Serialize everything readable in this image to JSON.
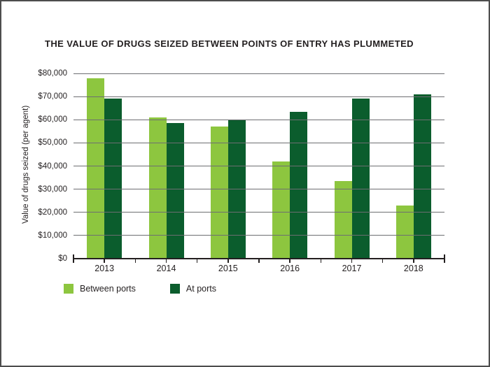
{
  "title": "THE VALUE OF DRUGS SEIZED BETWEEN POINTS OF ENTRY HAS PLUMMETED",
  "chart_data": {
    "type": "bar",
    "title": "THE VALUE OF DRUGS SEIZED BETWEEN POINTS OF ENTRY HAS PLUMMETED",
    "categories": [
      "2013",
      "2014",
      "2015",
      "2016",
      "2017",
      "2018"
    ],
    "series": [
      {
        "name": "Between ports",
        "color": "#8dc63f",
        "values": [
          78000,
          61000,
          57000,
          42000,
          33500,
          23000
        ]
      },
      {
        "name": "At ports",
        "color": "#0b5d2d",
        "values": [
          69000,
          58500,
          60000,
          63500,
          69000,
          71000
        ]
      }
    ],
    "xlabel": "",
    "ylabel": "Value of drugs seized (per agent)",
    "ylim": [
      0,
      80000
    ],
    "ytick_step": 10000,
    "ytick_labels": [
      "$0",
      "$10,000",
      "$20,000",
      "$30,000",
      "$40,000",
      "$50,000",
      "$60,000",
      "$70,000",
      "$80,000"
    ],
    "grid": true,
    "gridlines_over_bars": true,
    "gridline_color": "#6d6e71",
    "axis_color": "#231f20",
    "legend_position": "bottom-left"
  },
  "legend": {
    "items": [
      {
        "label": "Between ports",
        "color": "#8dc63f"
      },
      {
        "label": "At ports",
        "color": "#0b5d2d"
      }
    ]
  },
  "colors": {
    "between_ports": "#8dc63f",
    "at_ports": "#0b5d2d",
    "text": "#231f20",
    "gridline": "#6d6e71",
    "frame_border": "#4d4d4d",
    "background": "#ffffff"
  }
}
